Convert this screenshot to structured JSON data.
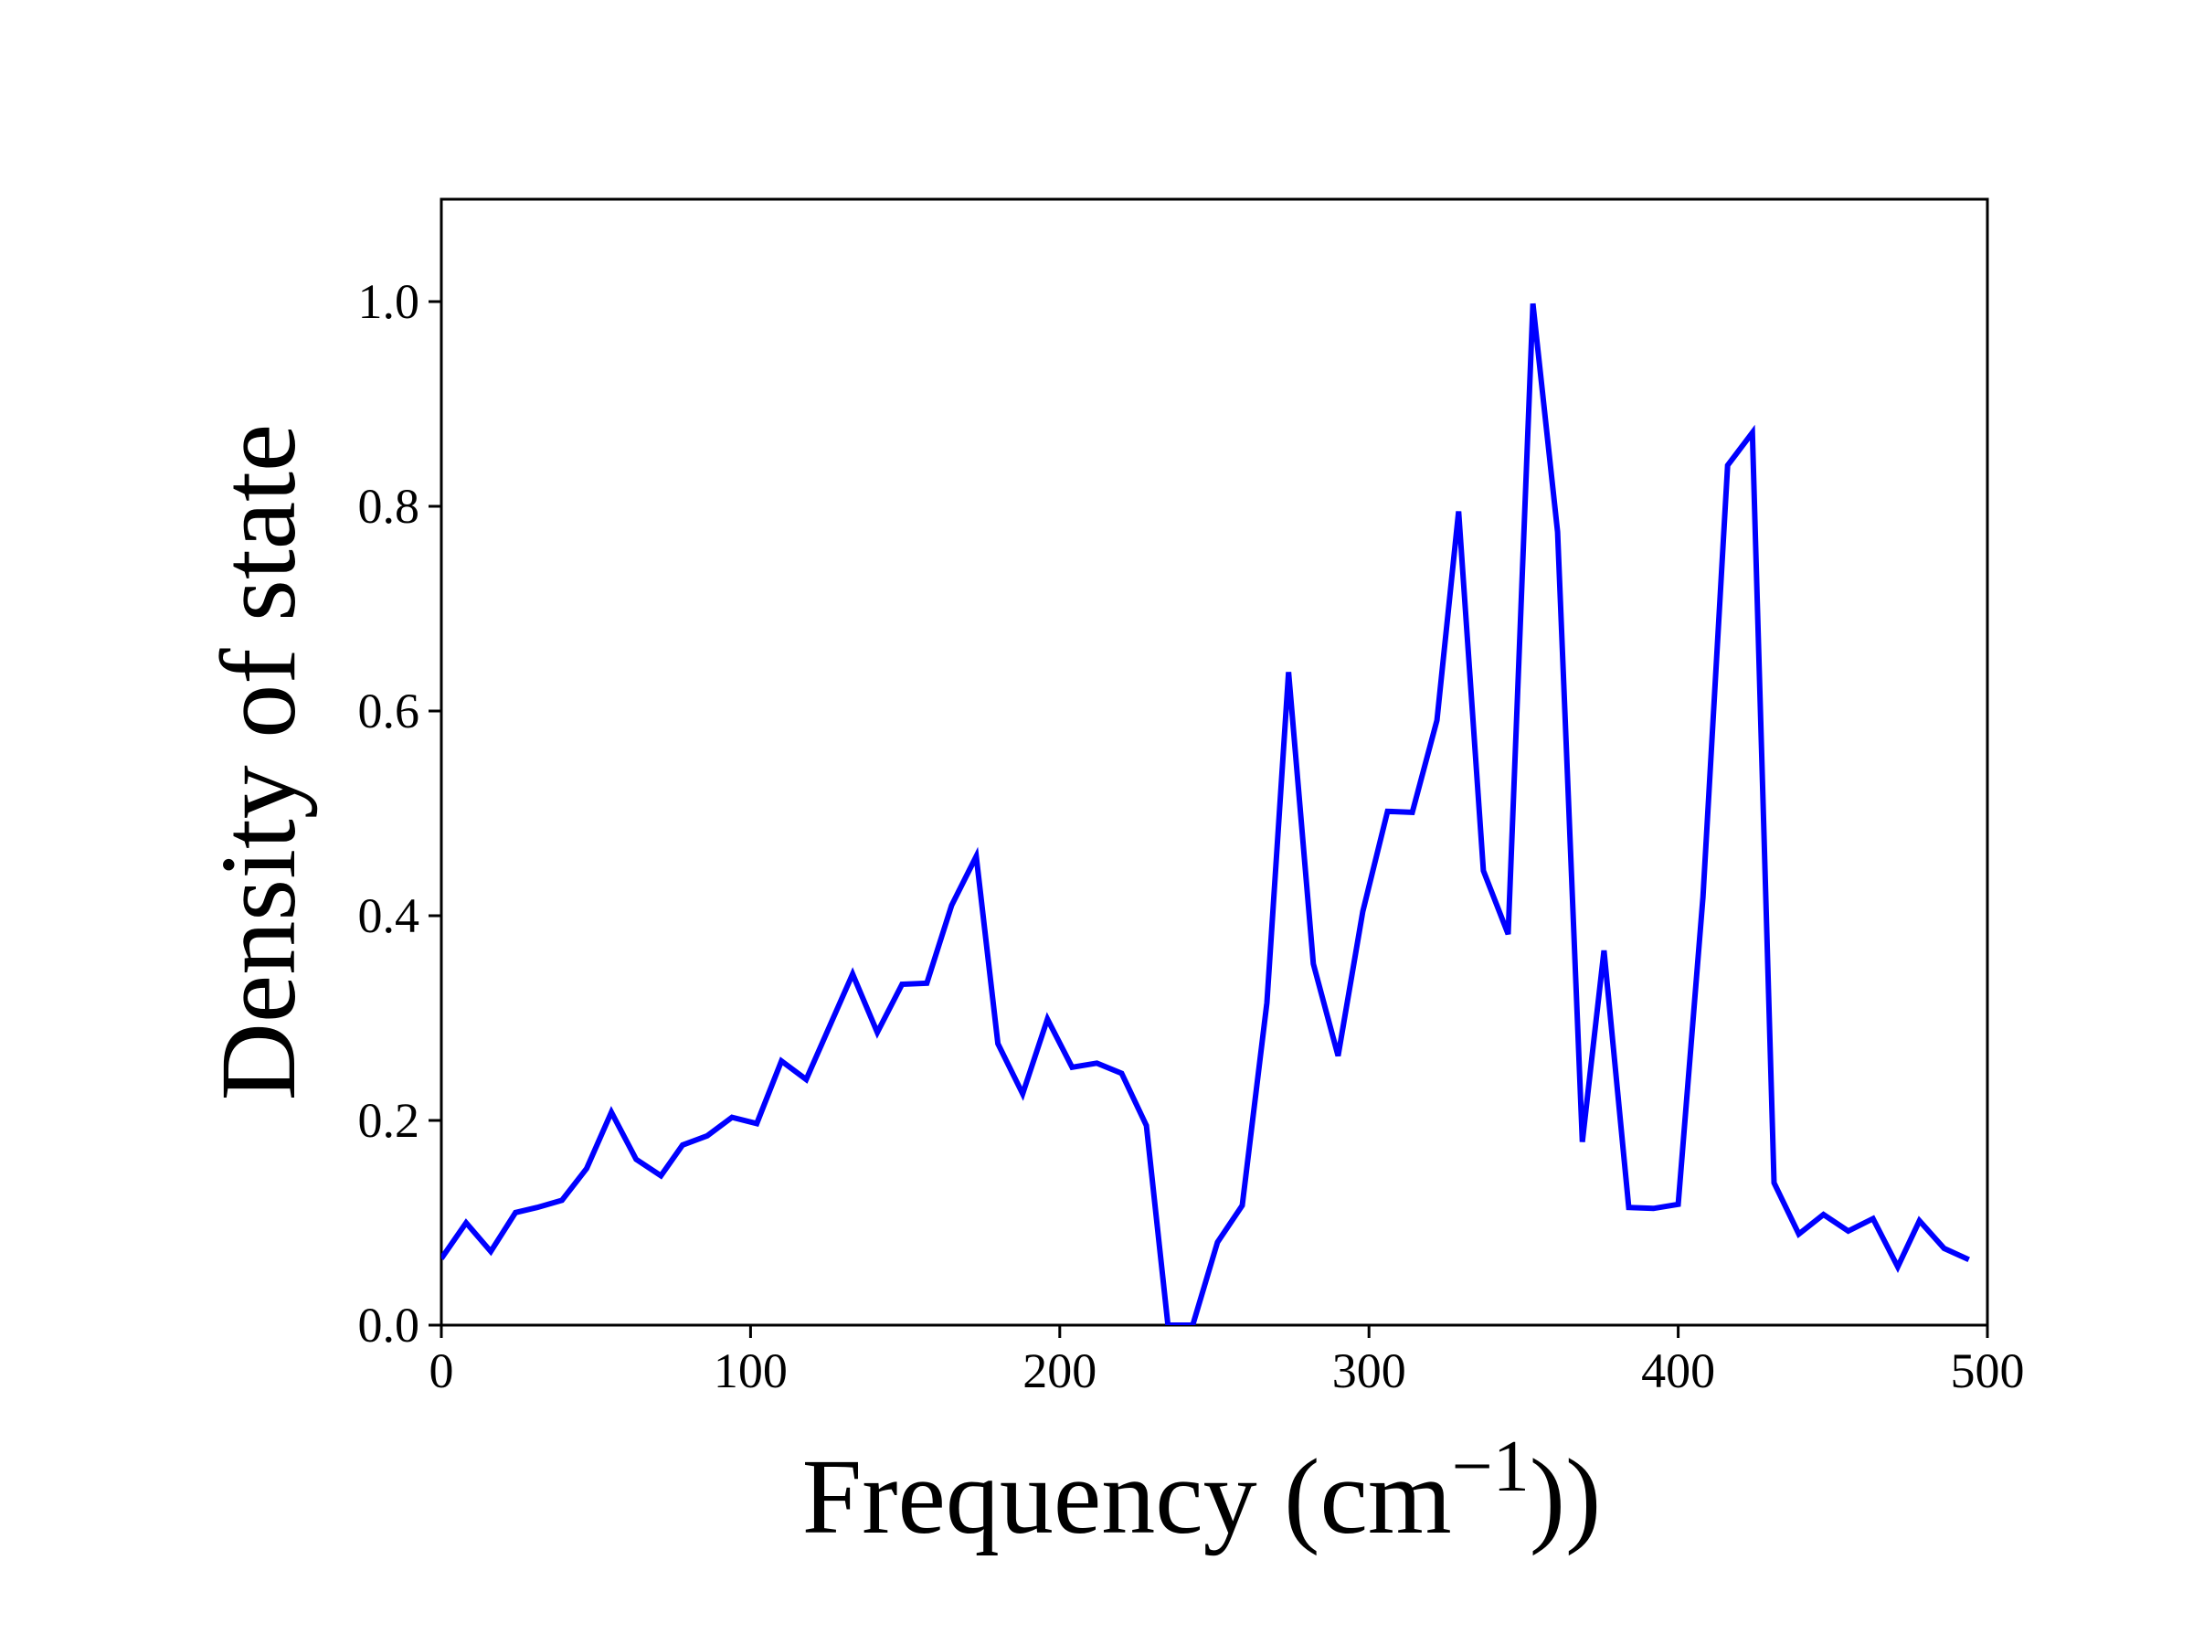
{
  "chart_data": {
    "type": "line",
    "title": "",
    "xlabel": "Frequency (cm",
    "xlabel_superscript": "−1",
    "xlabel_suffix": "))",
    "ylabel": "Density of state",
    "xlim": [
      0,
      500
    ],
    "ylim": [
      0,
      1.1
    ],
    "xticks": [
      0,
      100,
      200,
      300,
      400,
      500
    ],
    "yticks": [
      0.0,
      0.2,
      0.4,
      0.6,
      0.8,
      1.0
    ],
    "xtick_labels": [
      "0",
      "100",
      "200",
      "300",
      "400",
      "500"
    ],
    "ytick_labels": [
      "0.0",
      "0.2",
      "0.4",
      "0.6",
      "0.8",
      "1.0"
    ],
    "grid": false,
    "legend": "none",
    "series": [
      {
        "color": "#0000ff",
        "x": [
          0,
          8,
          16,
          24,
          31,
          39,
          47,
          55,
          63,
          71,
          78,
          86,
          94,
          102,
          110,
          118,
          126,
          133,
          141,
          149,
          157,
          165,
          173,
          180,
          188,
          196,
          204,
          212,
          220,
          228,
          235,
          243,
          251,
          259,
          267,
          274,
          282,
          290,
          298,
          306,
          314,
          322,
          329,
          337,
          345,
          353,
          361,
          369,
          376,
          384,
          392,
          400,
          408,
          416,
          424,
          431,
          439,
          447,
          455,
          463,
          471,
          478,
          486,
          494
        ],
        "y": [
          0.065,
          0.1,
          0.072,
          0.11,
          0.115,
          0.122,
          0.153,
          0.208,
          0.162,
          0.146,
          0.176,
          0.185,
          0.203,
          0.197,
          0.258,
          0.24,
          0.295,
          0.343,
          0.286,
          0.333,
          0.334,
          0.41,
          0.458,
          0.275,
          0.226,
          0.299,
          0.252,
          0.256,
          0.246,
          0.195,
          0.0,
          0.0,
          0.081,
          0.117,
          0.315,
          0.638,
          0.353,
          0.263,
          0.404,
          0.502,
          0.501,
          0.591,
          0.795,
          0.444,
          0.382,
          0.998,
          0.775,
          0.179,
          0.366,
          0.115,
          0.114,
          0.118,
          0.418,
          0.84,
          0.872,
          0.139,
          0.089,
          0.108,
          0.092,
          0.104,
          0.057,
          0.102,
          0.075,
          0.064
        ]
      }
    ]
  }
}
